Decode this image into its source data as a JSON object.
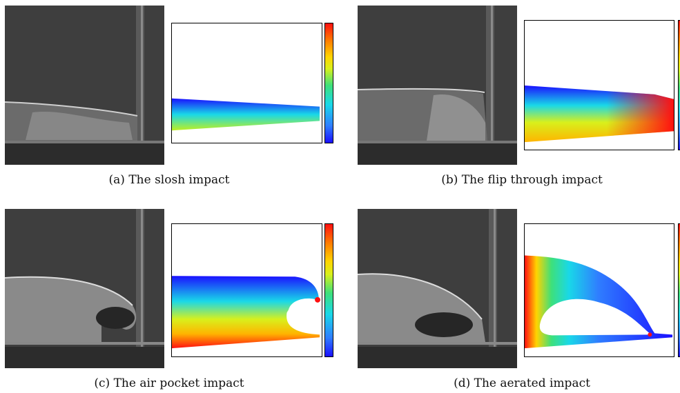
{
  "figure": {
    "panels": [
      {
        "id": "a",
        "caption": "(a) The slosh impact"
      },
      {
        "id": "b",
        "caption": "(b) The flip through impact"
      },
      {
        "id": "c",
        "caption": "(c) The air pocket impact"
      },
      {
        "id": "d",
        "caption": "(d) The aerated impact"
      }
    ],
    "colorbar_colors": [
      "#1a10ff",
      "#2f7dff",
      "#19d8e8",
      "#3ee07a",
      "#d8f01c",
      "#ffd400",
      "#ff7a00",
      "#ff1010"
    ]
  }
}
